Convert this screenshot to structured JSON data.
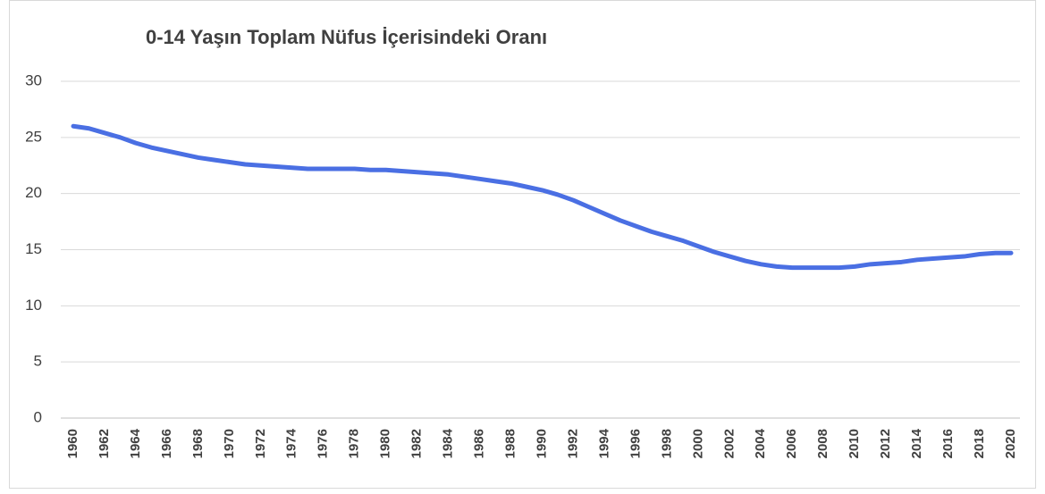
{
  "chart_data": {
    "type": "line",
    "title": "0-14 Yaşın Toplam Nüfus İçerisindeki Oranı",
    "x": [
      1960,
      1961,
      1962,
      1963,
      1964,
      1965,
      1966,
      1967,
      1968,
      1969,
      1970,
      1971,
      1972,
      1973,
      1974,
      1975,
      1976,
      1977,
      1978,
      1979,
      1980,
      1981,
      1982,
      1983,
      1984,
      1985,
      1986,
      1987,
      1988,
      1989,
      1990,
      1991,
      1992,
      1993,
      1994,
      1995,
      1996,
      1997,
      1998,
      1999,
      2000,
      2001,
      2002,
      2003,
      2004,
      2005,
      2006,
      2007,
      2008,
      2009,
      2010,
      2011,
      2012,
      2013,
      2014,
      2015,
      2016,
      2017,
      2018,
      2019,
      2020
    ],
    "series": [
      {
        "color": "#4a6fe3",
        "values": [
          26.0,
          25.8,
          25.4,
          25.0,
          24.5,
          24.1,
          23.8,
          23.5,
          23.2,
          23.0,
          22.8,
          22.6,
          22.5,
          22.4,
          22.3,
          22.2,
          22.2,
          22.2,
          22.2,
          22.1,
          22.1,
          22.0,
          21.9,
          21.8,
          21.7,
          21.5,
          21.3,
          21.1,
          20.9,
          20.6,
          20.3,
          19.9,
          19.4,
          18.8,
          18.2,
          17.6,
          17.1,
          16.6,
          16.2,
          15.8,
          15.3,
          14.8,
          14.4,
          14.0,
          13.7,
          13.5,
          13.4,
          13.4,
          13.4,
          13.4,
          13.5,
          13.7,
          13.8,
          13.9,
          14.1,
          14.2,
          14.3,
          14.4,
          14.6,
          14.7,
          14.7
        ]
      }
    ],
    "xlim": [
      1960,
      2020
    ],
    "xticks": [
      1960,
      1962,
      1964,
      1966,
      1968,
      1970,
      1972,
      1974,
      1976,
      1978,
      1980,
      1982,
      1984,
      1986,
      1988,
      1990,
      1992,
      1994,
      1996,
      1998,
      2000,
      2002,
      2004,
      2006,
      2008,
      2010,
      2012,
      2014,
      2016,
      2018,
      2020
    ],
    "ylim": [
      0,
      30
    ],
    "yticks": [
      0,
      5,
      10,
      15,
      20,
      25,
      30
    ],
    "grid": true
  }
}
